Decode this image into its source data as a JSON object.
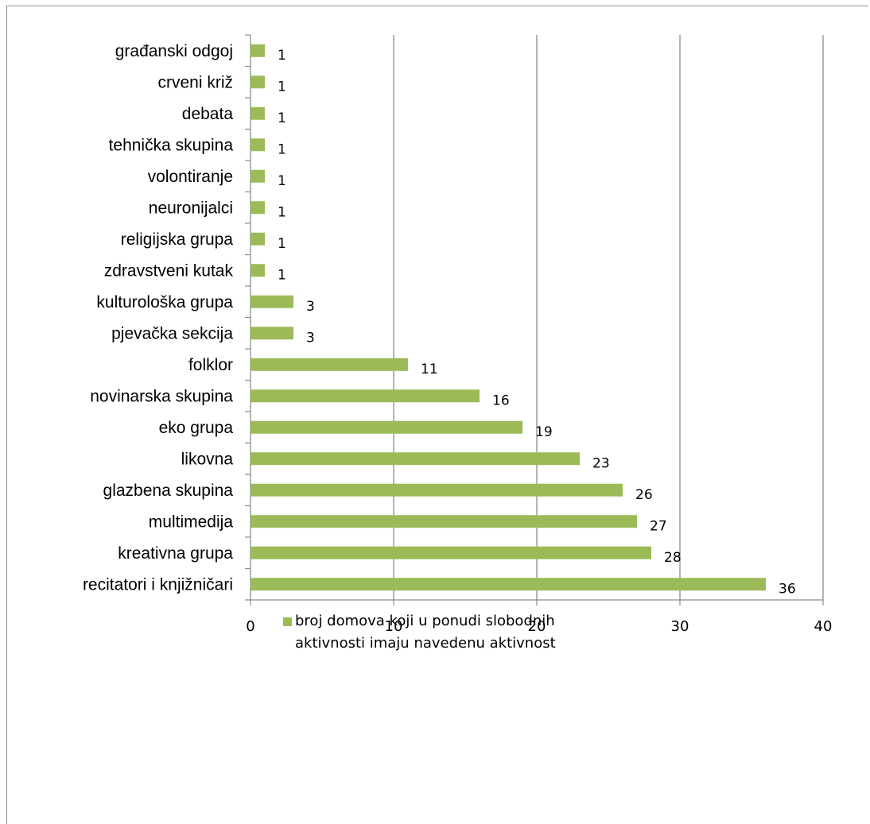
{
  "chart_data": {
    "type": "bar",
    "orientation": "horizontal",
    "categories": [
      "građanski odgoj",
      "crveni križ",
      "debata",
      "tehnička skupina",
      "volontiranje",
      "neuronijalci",
      "religijska grupa",
      "zdravstveni kutak",
      "kulturološka grupa",
      "pjevačka sekcija",
      "folklor",
      "novinarska skupina",
      "eko grupa",
      "likovna",
      "glazbena skupina",
      "multimedija",
      "kreativna grupa",
      "recitatori i knjižničari"
    ],
    "series": [
      {
        "name": "broj domova koji u ponudi slobodnih aktivnosti imaju navedenu aktivnost",
        "values": [
          1,
          1,
          1,
          1,
          1,
          1,
          1,
          1,
          3,
          3,
          11,
          16,
          19,
          23,
          26,
          27,
          28,
          36
        ],
        "color": "#9bbb59"
      }
    ],
    "xlim": [
      0,
      40
    ],
    "xticks": [
      "0",
      "10",
      "20",
      "30",
      "40"
    ],
    "grid": "vertical",
    "data_labels": true,
    "legend_position": "bottom"
  }
}
